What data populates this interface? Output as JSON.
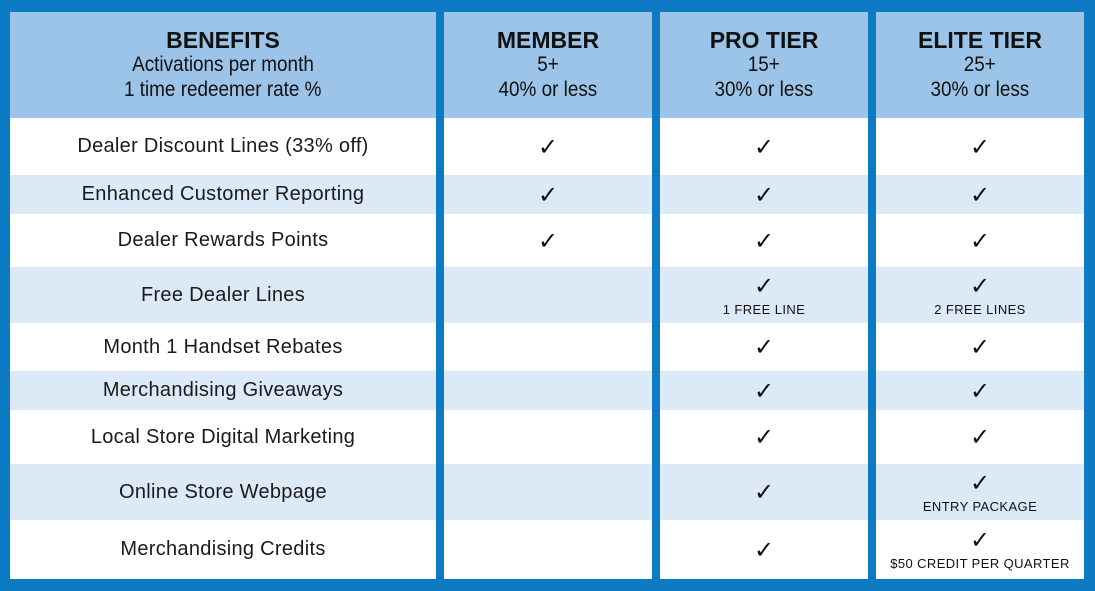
{
  "header": {
    "benefits": {
      "title": "BENEFITS",
      "line1": "Activations per month",
      "line2": "1 time redeemer rate %"
    },
    "tiers": [
      {
        "name": "MEMBER",
        "activations": "5+",
        "rate": "40% or less"
      },
      {
        "name": "PRO TIER",
        "activations": "15+",
        "rate": "30% or less"
      },
      {
        "name": "ELITE TIER",
        "activations": "25+",
        "rate": "30% or less"
      }
    ]
  },
  "check_glyph": "✓",
  "rows": [
    {
      "label": "Dealer Discount Lines (33% off)",
      "member": true,
      "pro": true,
      "elite": true,
      "pro_note": "",
      "elite_note": ""
    },
    {
      "label": "Enhanced Customer Reporting",
      "member": true,
      "pro": true,
      "elite": true,
      "pro_note": "",
      "elite_note": ""
    },
    {
      "label": "Dealer Rewards Points",
      "member": true,
      "pro": true,
      "elite": true,
      "pro_note": "",
      "elite_note": ""
    },
    {
      "label": "Free Dealer Lines",
      "member": false,
      "pro": true,
      "elite": true,
      "pro_note": "1 FREE LINE",
      "elite_note": "2 FREE LINES"
    },
    {
      "label": "Month 1 Handset Rebates",
      "member": false,
      "pro": true,
      "elite": true,
      "pro_note": "",
      "elite_note": ""
    },
    {
      "label": "Merchandising Giveaways",
      "member": false,
      "pro": true,
      "elite": true,
      "pro_note": "",
      "elite_note": ""
    },
    {
      "label": "Local Store Digital Marketing",
      "member": false,
      "pro": true,
      "elite": true,
      "pro_note": "",
      "elite_note": ""
    },
    {
      "label": "Online Store Webpage",
      "member": false,
      "pro": true,
      "elite": true,
      "pro_note": "",
      "elite_note": "ENTRY PACKAGE"
    },
    {
      "label": "Merchandising Credits",
      "member": false,
      "pro": true,
      "elite": true,
      "pro_note": "",
      "elite_note": "$50 CREDIT PER QUARTER"
    }
  ],
  "colors": {
    "frame_blue": "#0d7ac4",
    "header_blue": "#9cc4e8",
    "row_alt": "#dce9f6",
    "row_plain": "#ffffff"
  }
}
